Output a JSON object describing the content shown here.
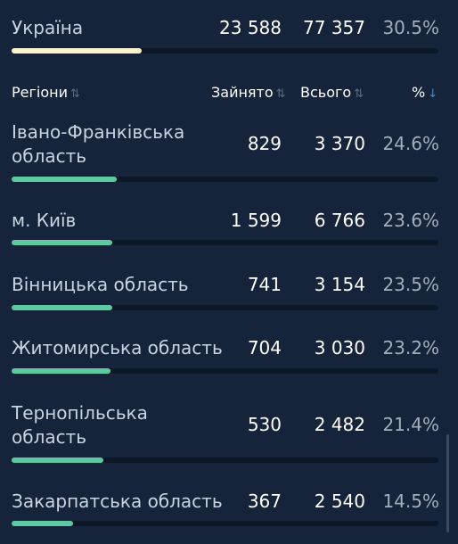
{
  "total": {
    "name": "Україна",
    "busy": "23 588",
    "total": "77 357",
    "percent": "30.5%",
    "fill": 0.305
  },
  "header": {
    "region": "Регіони",
    "busy": "Зайнято",
    "total": "Всього",
    "percent": "%"
  },
  "icons": {
    "sort_inactive": "sort-updown-icon",
    "sort_active": "sort-down-arrow-icon"
  },
  "colors": {
    "background": "#16243b",
    "total_bar": "#fbf3cb",
    "region_bar": "#5cc9a1",
    "active_sort": "#2f8ef0"
  },
  "regions": [
    {
      "name_line1": "Івано-Франківська",
      "name_line2": "область",
      "busy": "829",
      "total": "3 370",
      "percent": "24.6%",
      "fill": 0.246
    },
    {
      "name_line1": "м. Київ",
      "name_line2": "",
      "busy": "1 599",
      "total": "6 766",
      "percent": "23.6%",
      "fill": 0.236
    },
    {
      "name_line1": "Вінницька область",
      "name_line2": "",
      "busy": "741",
      "total": "3 154",
      "percent": "23.5%",
      "fill": 0.235
    },
    {
      "name_line1": "Житомирська область",
      "name_line2": "",
      "busy": "704",
      "total": "3 030",
      "percent": "23.2%",
      "fill": 0.232
    },
    {
      "name_line1": "Тернопільська",
      "name_line2": "область",
      "busy": "530",
      "total": "2 482",
      "percent": "21.4%",
      "fill": 0.214
    },
    {
      "name_line1": "Закарпатська область",
      "name_line2": "",
      "busy": "367",
      "total": "2 540",
      "percent": "14.5%",
      "fill": 0.145
    }
  ]
}
